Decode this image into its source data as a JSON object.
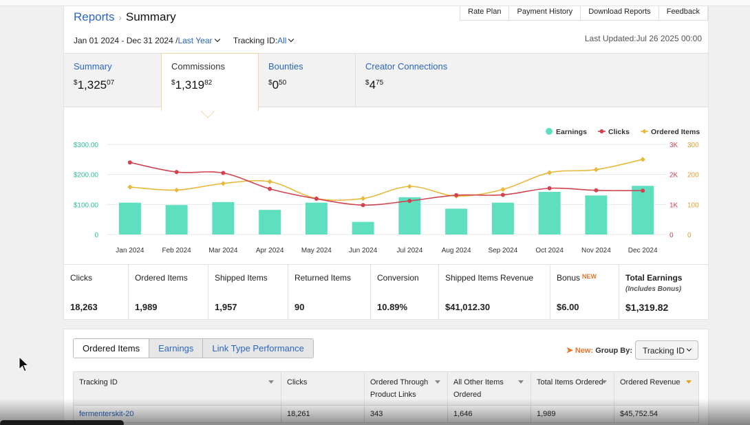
{
  "breadcrumb": {
    "parent": "Reports",
    "current": "Summary"
  },
  "top_links": [
    "Rate Plan",
    "Payment History",
    "Download Reports",
    "Feedback"
  ],
  "date_range": {
    "range": "Jan 01 2024 - Dec 31 2024 /",
    "preset": "Last Year",
    "tracking_label": "Tracking ID:",
    "tracking_value": "All"
  },
  "last_updated": "Last Updated:Jul 26 2025 00:00",
  "metric_tabs": [
    {
      "label": "Summary",
      "dollar": "$",
      "whole": "1,325",
      "cents": "07"
    },
    {
      "label": "Commissions",
      "dollar": "$",
      "whole": "1,319",
      "cents": "82"
    },
    {
      "label": "Bounties",
      "dollar": "$",
      "whole": "0",
      "cents": "50"
    },
    {
      "label": "Creator Connections",
      "dollar": "$",
      "whole": "4",
      "cents": "75"
    }
  ],
  "chart_data": {
    "type": "bar",
    "categories": [
      "Jan 2024",
      "Feb 2024",
      "Mar 2024",
      "Apr 2024",
      "May 2024",
      "Jun 2024",
      "Jul 2024",
      "Aug 2024",
      "Sep 2024",
      "Oct 2024",
      "Nov 2024",
      "Dec 2024"
    ],
    "series": [
      {
        "name": "Earnings",
        "type": "bar",
        "axis": "left",
        "color": "#5ee0c0",
        "values": [
          106,
          98,
          108,
          82,
          106,
          42,
          124,
          86,
          106,
          142,
          130,
          162
        ]
      },
      {
        "name": "Clicks",
        "type": "line",
        "axis": "right-clicks",
        "color": "#d0434f",
        "values": [
          2400,
          2080,
          2050,
          1520,
          1190,
          980,
          1120,
          1310,
          1320,
          1540,
          1470,
          1460
        ]
      },
      {
        "name": "Ordered Items",
        "type": "line",
        "axis": "right-items",
        "color": "#e8b93c",
        "values": [
          158,
          148,
          170,
          176,
          120,
          120,
          160,
          128,
          150,
          206,
          216,
          250
        ]
      }
    ],
    "y_left": {
      "ticks": [
        "$300.00",
        "$200.00",
        "$100.00",
        "0"
      ],
      "range": [
        0,
        300
      ]
    },
    "y_right_clicks": {
      "ticks": [
        "3K",
        "2K",
        "1K",
        "0"
      ],
      "range": [
        0,
        3000
      ]
    },
    "y_right_items": {
      "ticks": [
        "300",
        "200",
        "100",
        "0"
      ],
      "range": [
        0,
        300
      ]
    },
    "legend_position": "top-right",
    "grid": true
  },
  "stats": [
    {
      "label": "Clicks",
      "value": "18,263"
    },
    {
      "label": "Ordered Items",
      "value": "1,989"
    },
    {
      "label": "Shipped Items",
      "value": "1,957"
    },
    {
      "label": "Returned Items",
      "value": "90"
    },
    {
      "label": "Conversion",
      "value": "10.89%"
    },
    {
      "label": "Shipped Items Revenue",
      "value": "$41,012.30"
    },
    {
      "label": "Bonus",
      "badge": "NEW",
      "value": "$6.00"
    },
    {
      "label": "Total Earnings",
      "sub": "(Includes Bonus)",
      "value": "$1,319.82"
    }
  ],
  "report_tabs": [
    "Ordered Items",
    "Earnings",
    "Link Type Performance"
  ],
  "group_by": {
    "new": "New:",
    "label": "Group By:",
    "value": "Tracking ID"
  },
  "table": {
    "headers": [
      "Tracking ID",
      "Clicks",
      "Ordered Through Product Links",
      "All Other Items Ordered",
      "Total Items Ordered",
      "Ordered Revenue"
    ],
    "rows": [
      [
        "fermenterskit-20",
        "18,261",
        "343",
        "1,646",
        "1,989",
        "$45,752.54"
      ]
    ]
  }
}
